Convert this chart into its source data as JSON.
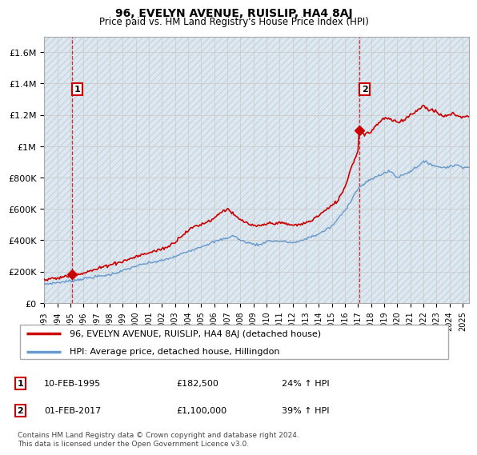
{
  "title": "96, EVELYN AVENUE, RUISLIP, HA4 8AJ",
  "subtitle": "Price paid vs. HM Land Registry's House Price Index (HPI)",
  "ylabel_ticks": [
    "£0",
    "£200K",
    "£400K",
    "£600K",
    "£800K",
    "£1M",
    "£1.2M",
    "£1.4M",
    "£1.6M"
  ],
  "ytick_values": [
    0,
    200000,
    400000,
    600000,
    800000,
    1000000,
    1200000,
    1400000,
    1600000
  ],
  "ylim": [
    0,
    1700000
  ],
  "xlim_start": 1993.0,
  "xlim_end": 2025.5,
  "sale1_x": 1995.11,
  "sale1_y": 182500,
  "sale2_x": 2017.08,
  "sale2_y": 1100000,
  "sale_color": "#cc0000",
  "hpi_color": "#6699cc",
  "legend_label1": "96, EVELYN AVENUE, RUISLIP, HA4 8AJ (detached house)",
  "legend_label2": "HPI: Average price, detached house, Hillingdon",
  "footnote": "Contains HM Land Registry data © Crown copyright and database right 2024.\nThis data is licensed under the Open Government Licence v3.0.",
  "grid_color": "#cccccc",
  "plot_bg": "#dde8f0",
  "xtick_years": [
    1993,
    1994,
    1995,
    1996,
    1997,
    1998,
    1999,
    2000,
    2001,
    2002,
    2003,
    2004,
    2005,
    2006,
    2007,
    2008,
    2009,
    2010,
    2011,
    2012,
    2013,
    2014,
    2015,
    2016,
    2017,
    2018,
    2019,
    2020,
    2021,
    2022,
    2023,
    2024,
    2025
  ],
  "hpi_key_years": [
    1993,
    1994,
    1995,
    1996,
    1997,
    1998,
    1999,
    2000,
    2001,
    2002,
    2003,
    2004,
    2005,
    2006,
    2007,
    2007.5,
    2008,
    2009,
    2009.5,
    2010,
    2011,
    2012,
    2012.5,
    2013,
    2014,
    2015,
    2016,
    2016.5,
    2017,
    2017.5,
    2018,
    2018.5,
    2019,
    2019.5,
    2020,
    2020.5,
    2021,
    2021.5,
    2022,
    2022.5,
    2023,
    2023.5,
    2024,
    2024.5,
    2025,
    2025.3
  ],
  "hpi_key_vals": [
    120000,
    130000,
    140000,
    155000,
    168000,
    180000,
    205000,
    235000,
    255000,
    270000,
    295000,
    330000,
    360000,
    390000,
    415000,
    430000,
    400000,
    375000,
    370000,
    395000,
    395000,
    385000,
    390000,
    410000,
    440000,
    490000,
    590000,
    660000,
    730000,
    760000,
    790000,
    810000,
    830000,
    840000,
    800000,
    820000,
    840000,
    870000,
    900000,
    890000,
    870000,
    865000,
    870000,
    880000,
    870000,
    865000
  ],
  "prop_key_years": [
    1993,
    1994,
    1995.0,
    1995.11,
    1995.5,
    1996,
    1997,
    1997.5,
    1998,
    1999,
    2000,
    2001,
    2002,
    2002.5,
    2003,
    2003.5,
    2004,
    2004.5,
    2005,
    2005.5,
    2006,
    2006.5,
    2007,
    2007.2,
    2007.5,
    2008,
    2008.5,
    2009,
    2009.5,
    2010,
    2010.5,
    2011,
    2011.5,
    2012,
    2012.5,
    2013,
    2013.5,
    2014,
    2014.5,
    2015,
    2015.5,
    2016,
    2016.5,
    2017.0,
    2017.08,
    2017.3,
    2017.5,
    2018,
    2018.3,
    2018.6,
    2019,
    2019.5,
    2020,
    2020.5,
    2021,
    2021.3,
    2021.6,
    2022,
    2022.3,
    2022.6,
    2023,
    2023.3,
    2023.6,
    2024,
    2024.3,
    2024.6,
    2025,
    2025.3
  ],
  "prop_key_vals": [
    148000,
    158000,
    176000,
    182500,
    183000,
    192000,
    215000,
    230000,
    245000,
    265000,
    295000,
    320000,
    345000,
    360000,
    390000,
    430000,
    460000,
    490000,
    500000,
    520000,
    540000,
    580000,
    600000,
    590000,
    560000,
    530000,
    510000,
    490000,
    490000,
    505000,
    510000,
    510000,
    505000,
    495000,
    500000,
    510000,
    530000,
    560000,
    590000,
    620000,
    660000,
    740000,
    870000,
    970000,
    1100000,
    1090000,
    1080000,
    1090000,
    1130000,
    1150000,
    1180000,
    1170000,
    1150000,
    1170000,
    1200000,
    1220000,
    1230000,
    1260000,
    1240000,
    1230000,
    1220000,
    1200000,
    1190000,
    1200000,
    1210000,
    1195000,
    1185000,
    1190000
  ]
}
